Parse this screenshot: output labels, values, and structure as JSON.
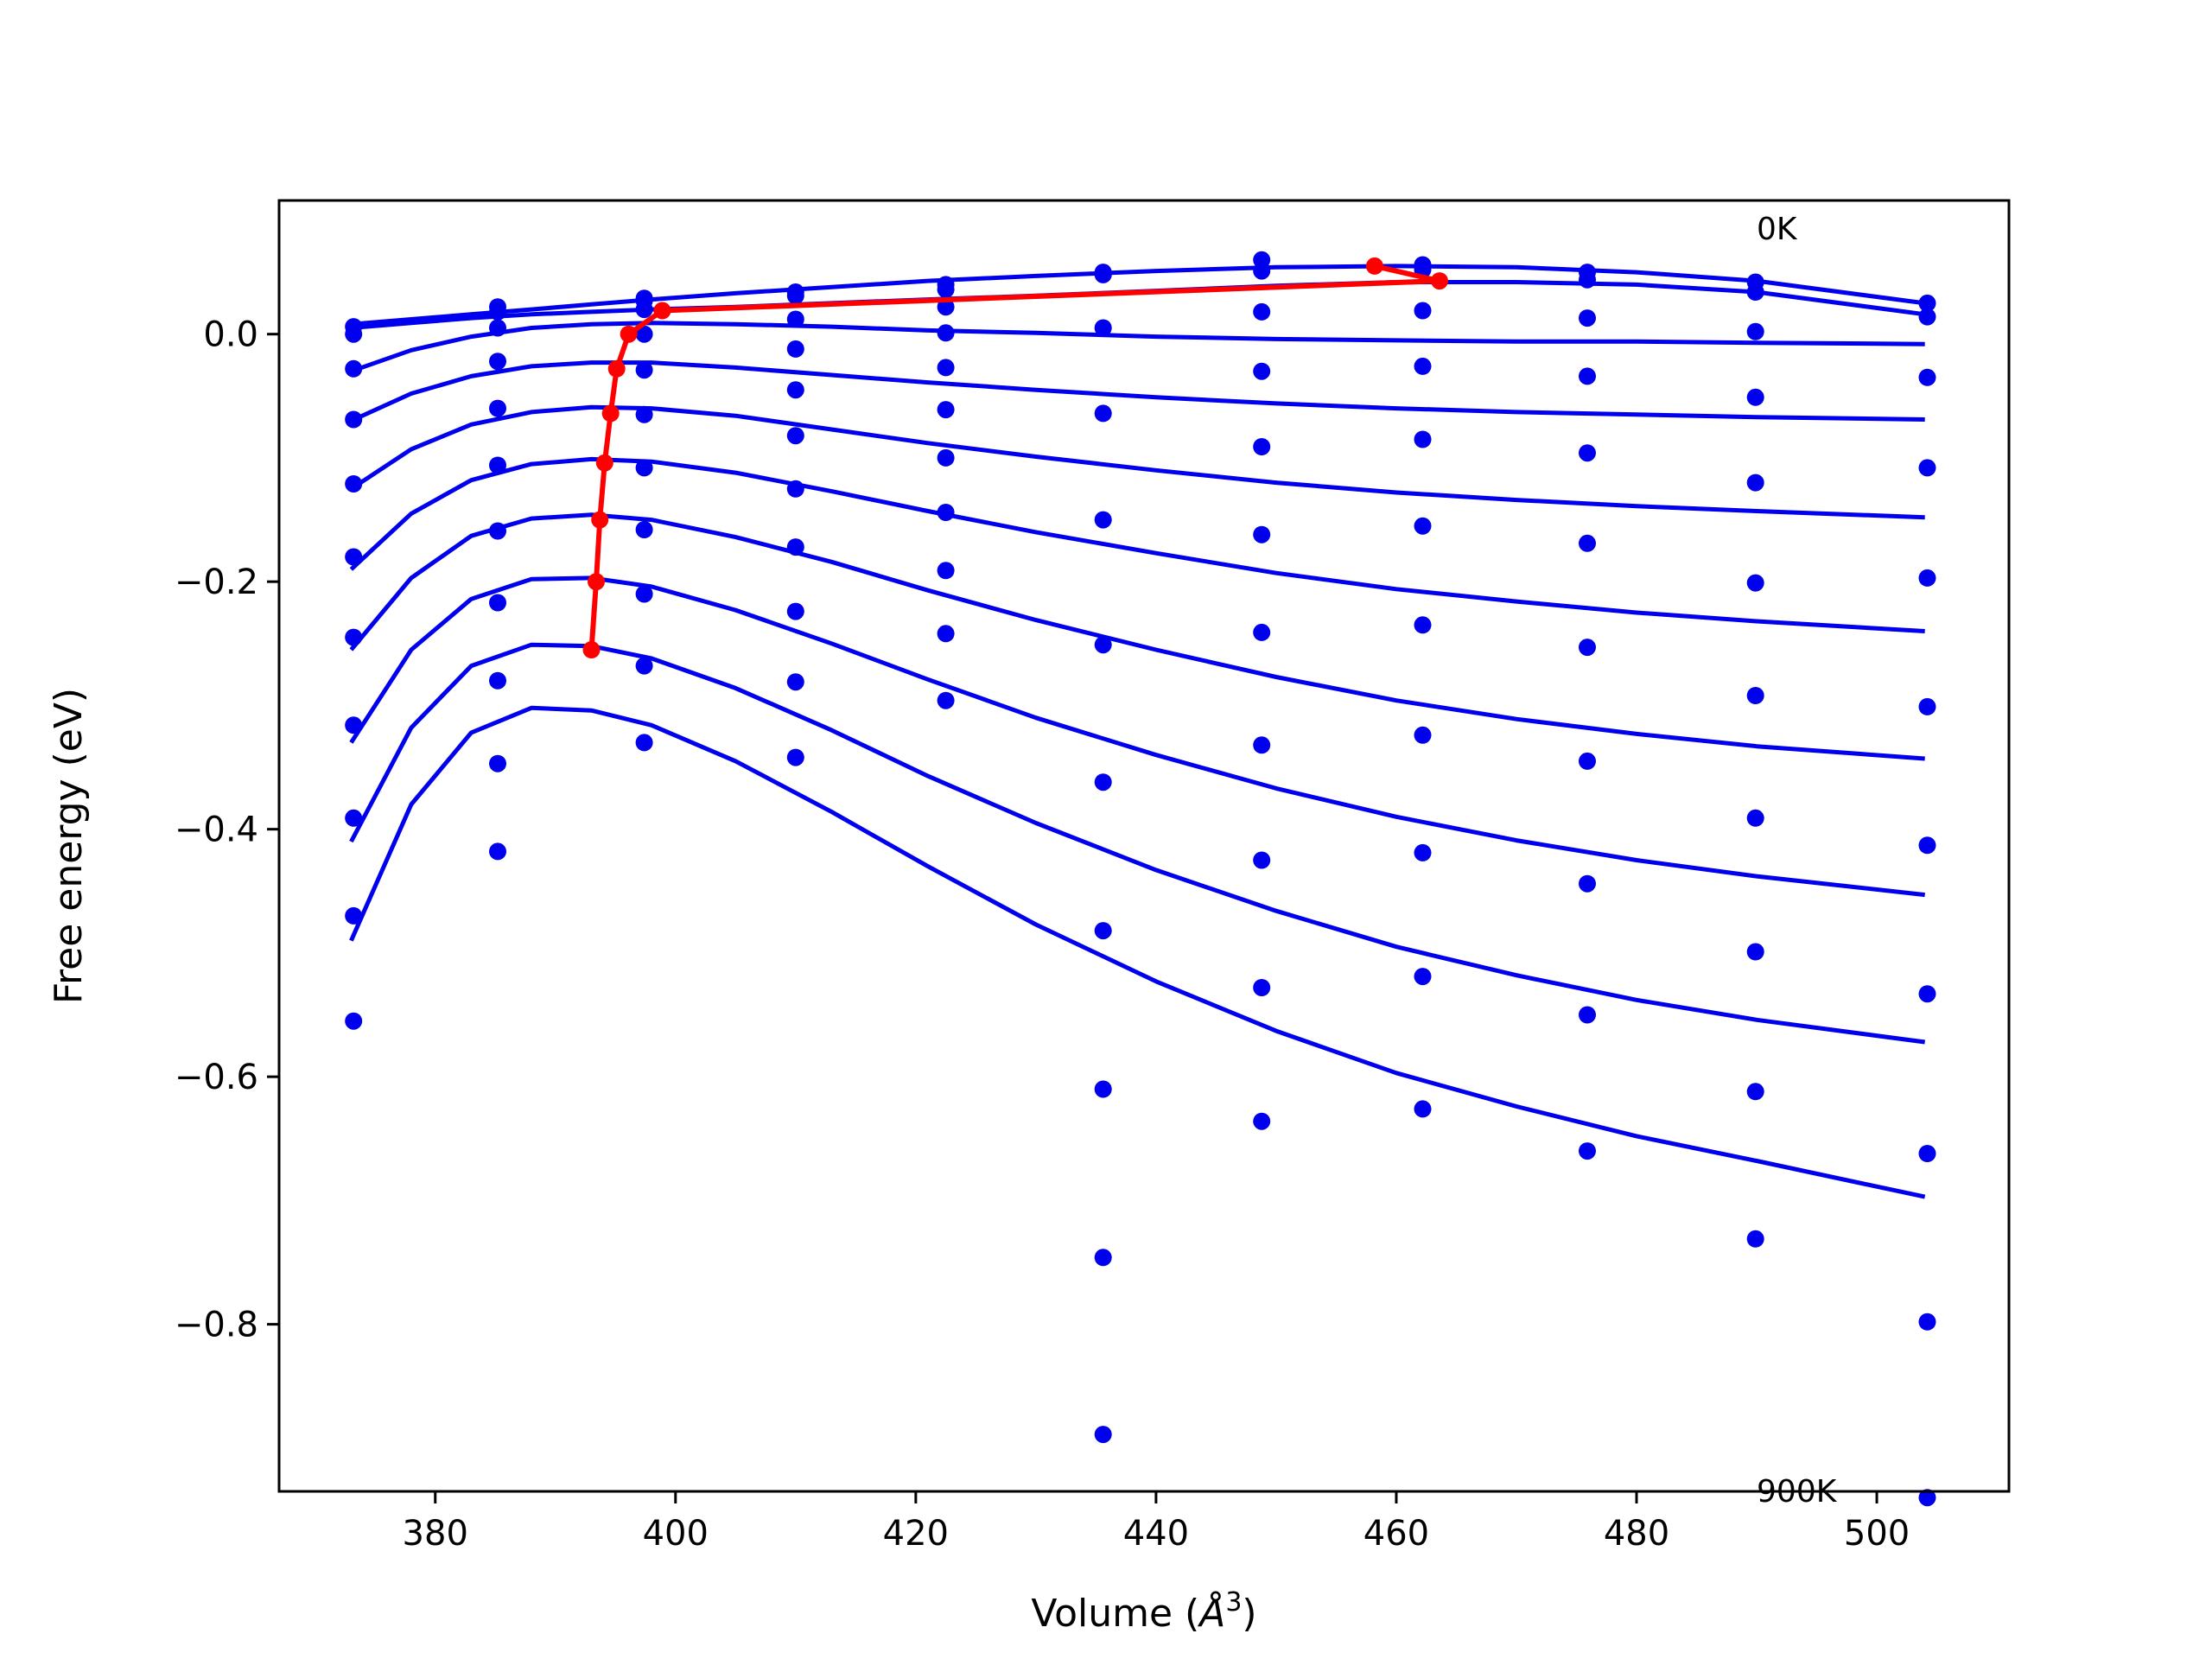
{
  "chart_data": {
    "type": "line",
    "title": "",
    "xlabel": "Volume (",
    "xlabel_symbol": "Å",
    "xlabel_sup": "3",
    "xlabel_close": ")",
    "ylabel": "Free energy (eV)",
    "xlim": [
      367,
      511
    ],
    "ylim": [
      -0.935,
      0.108
    ],
    "xticks": [
      380,
      400,
      420,
      440,
      460,
      480,
      500
    ],
    "xtick_labels": [
      "380",
      "400",
      "420",
      "440",
      "460",
      "480",
      "500"
    ],
    "yticks": [
      0.0,
      -0.2,
      -0.4,
      -0.6,
      -0.8
    ],
    "ytick_labels": [
      "0.0",
      "−0.2",
      "−0.4",
      "−0.6",
      "−0.8"
    ],
    "annotations": [
      {
        "text": "0K",
        "x": 490,
        "y": 0.085
      },
      {
        "text": "900K",
        "x": 490,
        "y": -0.935
      }
    ],
    "colors": {
      "fit": "#0000ee",
      "points": "#0000ee",
      "minima": "#ff0000"
    },
    "volumes": [
      373.2,
      385.2,
      397.4,
      410.0,
      422.5,
      435.6,
      448.8,
      462.2,
      475.9,
      489.9,
      504.2
    ],
    "point_series": [
      [
        0.006,
        0.022,
        0.029,
        0.034,
        0.04,
        0.05,
        0.06,
        0.056,
        0.05,
        0.042,
        0.025
      ],
      [
        0.0,
        0.018,
        0.027,
        0.031,
        0.036,
        0.048,
        0.051,
        0.052,
        0.044,
        0.034,
        0.014
      ],
      [
        -0.028,
        0.005,
        0.02,
        0.012,
        0.022,
        0.005,
        0.018,
        0.019,
        0.013,
        0.002,
        -0.035
      ],
      [
        -0.069,
        -0.022,
        0.0,
        -0.012,
        0.001,
        -0.064,
        -0.03,
        -0.026,
        -0.034,
        -0.051,
        -0.108
      ],
      [
        -0.121,
        -0.06,
        -0.029,
        -0.045,
        -0.027,
        -0.15,
        -0.091,
        -0.085,
        -0.096,
        -0.12,
        -0.197
      ],
      [
        -0.18,
        -0.106,
        -0.065,
        -0.082,
        -0.061,
        -0.251,
        -0.162,
        -0.155,
        -0.169,
        -0.201,
        -0.301
      ],
      [
        -0.245,
        -0.159,
        -0.108,
        -0.125,
        -0.1,
        -0.362,
        -0.241,
        -0.235,
        -0.253,
        -0.292,
        -0.413
      ],
      [
        -0.316,
        -0.217,
        -0.158,
        -0.172,
        -0.144,
        -0.482,
        -0.332,
        -0.324,
        -0.345,
        -0.391,
        -0.533
      ],
      [
        -0.391,
        -0.28,
        -0.21,
        -0.224,
        -0.191,
        -0.61,
        -0.425,
        -0.419,
        -0.444,
        -0.499,
        -0.662
      ],
      [
        -0.47,
        -0.347,
        -0.268,
        -0.281,
        -0.242,
        -0.746,
        -0.528,
        -0.519,
        -0.55,
        -0.612,
        -0.798
      ],
      [
        -0.555,
        -0.418,
        -0.33,
        -0.342,
        -0.296,
        -0.889,
        -0.636,
        -0.626,
        -0.66,
        -0.731,
        -0.94
      ]
    ],
    "fit_x": [
      373,
      378,
      383,
      388,
      393,
      398,
      405,
      413,
      421,
      430,
      440,
      450,
      460,
      470,
      480,
      490,
      504
    ],
    "fit_series": [
      [
        0.008,
        0.012,
        0.016,
        0.02,
        0.024,
        0.028,
        0.033,
        0.038,
        0.043,
        0.047,
        0.051,
        0.054,
        0.055,
        0.054,
        0.05,
        0.043,
        0.025
      ],
      [
        0.005,
        0.009,
        0.013,
        0.016,
        0.018,
        0.02,
        0.022,
        0.025,
        0.028,
        0.031,
        0.035,
        0.039,
        0.042,
        0.042,
        0.04,
        0.034,
        0.016
      ],
      [
        -0.03,
        -0.013,
        -0.002,
        0.005,
        0.008,
        0.009,
        0.008,
        0.006,
        0.003,
        0.001,
        -0.002,
        -0.004,
        -0.005,
        -0.006,
        -0.006,
        -0.007,
        -0.008
      ],
      [
        -0.07,
        -0.048,
        -0.034,
        -0.026,
        -0.023,
        -0.023,
        -0.027,
        -0.033,
        -0.039,
        -0.045,
        -0.051,
        -0.056,
        -0.06,
        -0.063,
        -0.065,
        -0.067,
        -0.069
      ],
      [
        -0.125,
        -0.093,
        -0.073,
        -0.063,
        -0.059,
        -0.06,
        -0.066,
        -0.077,
        -0.088,
        -0.099,
        -0.11,
        -0.12,
        -0.128,
        -0.134,
        -0.139,
        -0.143,
        -0.148
      ],
      [
        -0.19,
        -0.145,
        -0.118,
        -0.105,
        -0.101,
        -0.103,
        -0.112,
        -0.127,
        -0.143,
        -0.16,
        -0.177,
        -0.193,
        -0.206,
        -0.216,
        -0.225,
        -0.232,
        -0.24
      ],
      [
        -0.255,
        -0.197,
        -0.163,
        -0.149,
        -0.146,
        -0.15,
        -0.164,
        -0.184,
        -0.207,
        -0.231,
        -0.255,
        -0.277,
        -0.296,
        -0.311,
        -0.323,
        -0.333,
        -0.343
      ],
      [
        -0.33,
        -0.255,
        -0.214,
        -0.198,
        -0.197,
        -0.204,
        -0.223,
        -0.25,
        -0.279,
        -0.31,
        -0.34,
        -0.367,
        -0.39,
        -0.409,
        -0.425,
        -0.438,
        -0.453
      ],
      [
        -0.41,
        -0.318,
        -0.268,
        -0.251,
        -0.252,
        -0.262,
        -0.286,
        -0.32,
        -0.357,
        -0.395,
        -0.433,
        -0.466,
        -0.495,
        -0.518,
        -0.538,
        -0.554,
        -0.572
      ],
      [
        -0.49,
        -0.38,
        -0.322,
        -0.302,
        -0.304,
        -0.316,
        -0.345,
        -0.386,
        -0.43,
        -0.477,
        -0.523,
        -0.563,
        -0.597,
        -0.624,
        -0.648,
        -0.668,
        -0.697
      ]
    ],
    "minima_path": {
      "x": [
        393.0,
        393.4,
        393.7,
        394.1,
        394.6,
        395.1,
        396.1,
        398.9,
        463.6,
        458.2
      ],
      "y": [
        -0.255,
        -0.2,
        -0.15,
        -0.104,
        -0.064,
        -0.028,
        0.0,
        0.019,
        0.043,
        0.055
      ]
    }
  }
}
